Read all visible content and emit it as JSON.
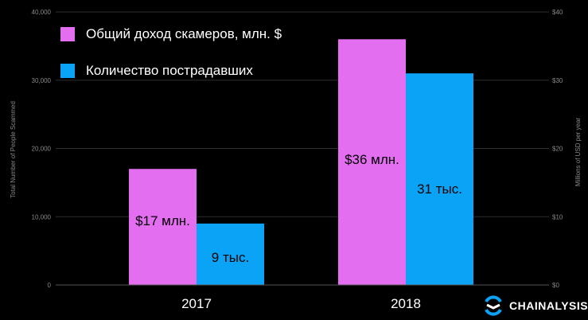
{
  "legend": {
    "revenue_label": "Общий доход скамеров, млн. $",
    "victims_label": "Количество пострадавших"
  },
  "colors": {
    "revenue": "#e36ff0",
    "victims": "#0aa3f5",
    "grid": "#2e2e2e",
    "axis_text": "#888888"
  },
  "brand": {
    "name": "CHAINALYSIS"
  },
  "chart_data": {
    "type": "bar",
    "categories": [
      "2017",
      "2018"
    ],
    "series": [
      {
        "name": "Общий доход скамеров, млн. $",
        "axis": "right",
        "values": [
          17,
          36
        ],
        "labels": [
          "$17 млн.",
          "$36 млн."
        ]
      },
      {
        "name": "Количество пострадавших",
        "axis": "left",
        "values": [
          9000,
          31000
        ],
        "labels": [
          "9 тыс.",
          "31 тыс."
        ]
      }
    ],
    "left_axis": {
      "label": "Total Number of People Scammed",
      "min": 0,
      "max": 40000,
      "ticks": [
        0,
        10000,
        20000,
        30000,
        40000
      ],
      "tick_labels": [
        "0",
        "10,000",
        "20,000",
        "30,000",
        "40,000"
      ]
    },
    "right_axis": {
      "label": "Millions of USD per year",
      "min": 0,
      "max": 40,
      "ticks": [
        0,
        10,
        20,
        30,
        40
      ],
      "tick_labels": [
        "$0",
        "$10",
        "$20",
        "$30",
        "$40"
      ]
    },
    "grid": true,
    "legend_position": "top-left"
  }
}
